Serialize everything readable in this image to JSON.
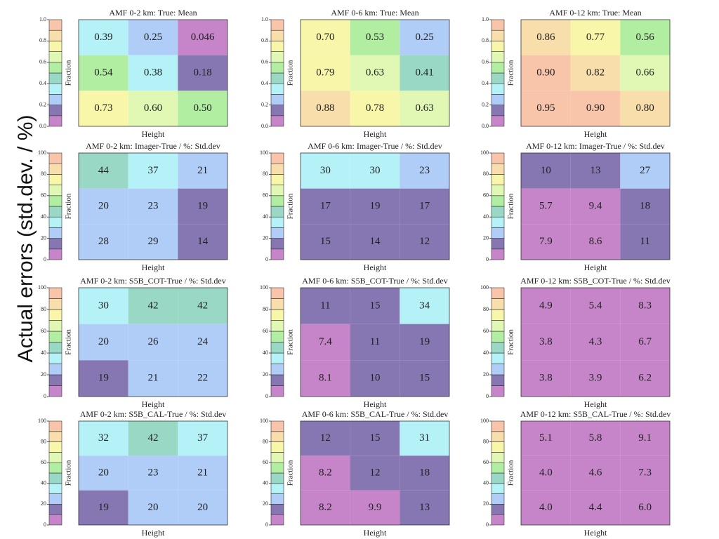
{
  "side_label": "Actual errors (std.dev. / %)",
  "colormap": [
    "#c585c8",
    "#8676b2",
    "#b0cdf8",
    "#b4f2f8",
    "#98d8c4",
    "#b2eea2",
    "#e0f8b4",
    "#f8f6a8",
    "#f8deaa",
    "#f8c4aa"
  ],
  "chart_data": [
    {
      "type": "heatmap",
      "title": "AMF 0-2 km: True: Mean",
      "xlabel": "Height",
      "colorbar_label": "Fraction",
      "clim": [
        0,
        1
      ],
      "cticks": [
        {
          "value": 0,
          "label": "0.0"
        },
        0.2,
        0.4,
        0.6,
        0.8,
        {
          "value": 1,
          "label": "1.0"
        }
      ],
      "values": [
        [
          0.39,
          0.25,
          0.046
        ],
        [
          0.54,
          0.38,
          0.18
        ],
        [
          0.73,
          0.6,
          0.5
        ]
      ],
      "value_labels": [
        [
          "0.39",
          "0.25",
          "0.046"
        ],
        [
          "0.54",
          "0.38",
          "0.18"
        ],
        [
          "0.73",
          "0.60",
          "0.50"
        ]
      ]
    },
    {
      "type": "heatmap",
      "title": "AMF 0-6 km: True: Mean",
      "xlabel": "Height",
      "colorbar_label": "Fraction",
      "clim": [
        0,
        1
      ],
      "cticks": [
        {
          "value": 0,
          "label": "0.0"
        },
        0.2,
        0.4,
        0.6,
        0.8,
        {
          "value": 1,
          "label": "1.0"
        }
      ],
      "values": [
        [
          0.7,
          0.53,
          0.25
        ],
        [
          0.79,
          0.63,
          0.41
        ],
        [
          0.88,
          0.78,
          0.63
        ]
      ],
      "value_labels": [
        [
          "0.70",
          "0.53",
          "0.25"
        ],
        [
          "0.79",
          "0.63",
          "0.41"
        ],
        [
          "0.88",
          "0.78",
          "0.63"
        ]
      ]
    },
    {
      "type": "heatmap",
      "title": "AMF 0-12 km: True: Mean",
      "xlabel": "Height",
      "colorbar_label": "Fraction",
      "clim": [
        0,
        1
      ],
      "cticks": [
        {
          "value": 0,
          "label": "0.0"
        },
        0.2,
        0.4,
        0.6,
        0.8,
        {
          "value": 1,
          "label": "1.0"
        }
      ],
      "values": [
        [
          0.86,
          0.77,
          0.56
        ],
        [
          0.9,
          0.82,
          0.66
        ],
        [
          0.95,
          0.9,
          0.8
        ]
      ],
      "value_labels": [
        [
          "0.86",
          "0.77",
          "0.56"
        ],
        [
          "0.90",
          "0.82",
          "0.66"
        ],
        [
          "0.95",
          "0.90",
          "0.80"
        ]
      ]
    },
    {
      "type": "heatmap",
      "title": "AMF 0-2 km: Imager-True / %: Std.dev",
      "xlabel": "Height",
      "colorbar_label": "Fraction",
      "clim": [
        0,
        100
      ],
      "cticks": [
        0,
        20,
        40,
        60,
        80,
        100
      ],
      "values": [
        [
          44,
          37,
          21
        ],
        [
          20,
          23,
          19
        ],
        [
          28,
          29,
          14
        ]
      ],
      "value_labels": [
        [
          "44",
          "37",
          "21"
        ],
        [
          "20",
          "23",
          "19"
        ],
        [
          "28",
          "29",
          "14"
        ]
      ]
    },
    {
      "type": "heatmap",
      "title": "AMF 0-6 km: Imager-True / %: Std.dev",
      "xlabel": "Height",
      "colorbar_label": "Fraction",
      "clim": [
        0,
        100
      ],
      "cticks": [
        0,
        20,
        40,
        60,
        80,
        100
      ],
      "values": [
        [
          30,
          30,
          23
        ],
        [
          17,
          19,
          17
        ],
        [
          15,
          14,
          12
        ]
      ],
      "value_labels": [
        [
          "30",
          "30",
          "23"
        ],
        [
          "17",
          "19",
          "17"
        ],
        [
          "15",
          "14",
          "12"
        ]
      ]
    },
    {
      "type": "heatmap",
      "title": "AMF 0-12 km: Imager-True / %: Std.dev",
      "xlabel": "Height",
      "colorbar_label": "Fraction",
      "clim": [
        0,
        100
      ],
      "cticks": [
        0,
        20,
        40,
        60,
        80,
        100
      ],
      "values": [
        [
          10,
          13,
          27
        ],
        [
          5.7,
          9.4,
          18
        ],
        [
          7.9,
          8.6,
          11
        ]
      ],
      "value_labels": [
        [
          "10",
          "13",
          "27"
        ],
        [
          "5.7",
          "9.4",
          "18"
        ],
        [
          "7.9",
          "8.6",
          "11"
        ]
      ]
    },
    {
      "type": "heatmap",
      "title": "AMF 0-2 km: S5B_COT-True / %: Std.dev",
      "xlabel": "Height",
      "colorbar_label": "Fraction",
      "clim": [
        0,
        100
      ],
      "cticks": [
        0,
        20,
        40,
        60,
        80,
        100
      ],
      "values": [
        [
          30,
          42,
          42
        ],
        [
          20,
          26,
          24
        ],
        [
          19,
          21,
          22
        ]
      ],
      "value_labels": [
        [
          "30",
          "42",
          "42"
        ],
        [
          "20",
          "26",
          "24"
        ],
        [
          "19",
          "21",
          "22"
        ]
      ]
    },
    {
      "type": "heatmap",
      "title": "AMF 0-6 km: S5B_COT-True / %: Std.dev",
      "xlabel": "Height",
      "colorbar_label": "Fraction",
      "clim": [
        0,
        100
      ],
      "cticks": [
        0,
        20,
        40,
        60,
        80,
        100
      ],
      "values": [
        [
          11,
          15,
          34
        ],
        [
          7.4,
          11,
          19
        ],
        [
          8.1,
          10,
          15
        ]
      ],
      "value_labels": [
        [
          "11",
          "15",
          "34"
        ],
        [
          "7.4",
          "11",
          "19"
        ],
        [
          "8.1",
          "10",
          "15"
        ]
      ]
    },
    {
      "type": "heatmap",
      "title": "AMF 0-12 km: S5B_COT-True / %: Std.dev",
      "xlabel": "Height",
      "colorbar_label": "Fraction",
      "clim": [
        0,
        100
      ],
      "cticks": [
        0,
        20,
        40,
        60,
        80,
        100
      ],
      "values": [
        [
          4.9,
          5.4,
          8.3
        ],
        [
          3.8,
          4.3,
          6.7
        ],
        [
          3.8,
          3.9,
          6.2
        ]
      ],
      "value_labels": [
        [
          "4.9",
          "5.4",
          "8.3"
        ],
        [
          "3.8",
          "4.3",
          "6.7"
        ],
        [
          "3.8",
          "3.9",
          "6.2"
        ]
      ]
    },
    {
      "type": "heatmap",
      "title": "AMF 0-2 km: S5B_CAL-True / %: Std.dev",
      "xlabel": "Height",
      "colorbar_label": "Fraction",
      "clim": [
        0,
        100
      ],
      "cticks": [
        0,
        20,
        40,
        60,
        80,
        100
      ],
      "values": [
        [
          32,
          42,
          37
        ],
        [
          20,
          23,
          21
        ],
        [
          19,
          20,
          20
        ]
      ],
      "value_labels": [
        [
          "32",
          "42",
          "37"
        ],
        [
          "20",
          "23",
          "21"
        ],
        [
          "19",
          "20",
          "20"
        ]
      ]
    },
    {
      "type": "heatmap",
      "title": "AMF 0-6 km: S5B_CAL-True / %: Std.dev",
      "xlabel": "Height",
      "colorbar_label": "Fraction",
      "clim": [
        0,
        100
      ],
      "cticks": [
        0,
        20,
        40,
        60,
        80,
        100
      ],
      "values": [
        [
          12,
          15,
          31
        ],
        [
          8.2,
          12,
          18
        ],
        [
          8.2,
          9.9,
          13
        ]
      ],
      "value_labels": [
        [
          "12",
          "15",
          "31"
        ],
        [
          "8.2",
          "12",
          "18"
        ],
        [
          "8.2",
          "9.9",
          "13"
        ]
      ]
    },
    {
      "type": "heatmap",
      "title": "AMF 0-12 km: S5B_CAL-True / %: Std.dev",
      "xlabel": "Height",
      "colorbar_label": "Fraction",
      "clim": [
        0,
        100
      ],
      "cticks": [
        0,
        20,
        40,
        60,
        80,
        100
      ],
      "values": [
        [
          5.1,
          5.8,
          9.1
        ],
        [
          4.0,
          4.6,
          7.3
        ],
        [
          4.0,
          4.4,
          6.0
        ]
      ],
      "value_labels": [
        [
          "5.1",
          "5.8",
          "9.1"
        ],
        [
          "4.0",
          "4.6",
          "7.3"
        ],
        [
          "4.0",
          "4.4",
          "6.0"
        ]
      ]
    }
  ]
}
